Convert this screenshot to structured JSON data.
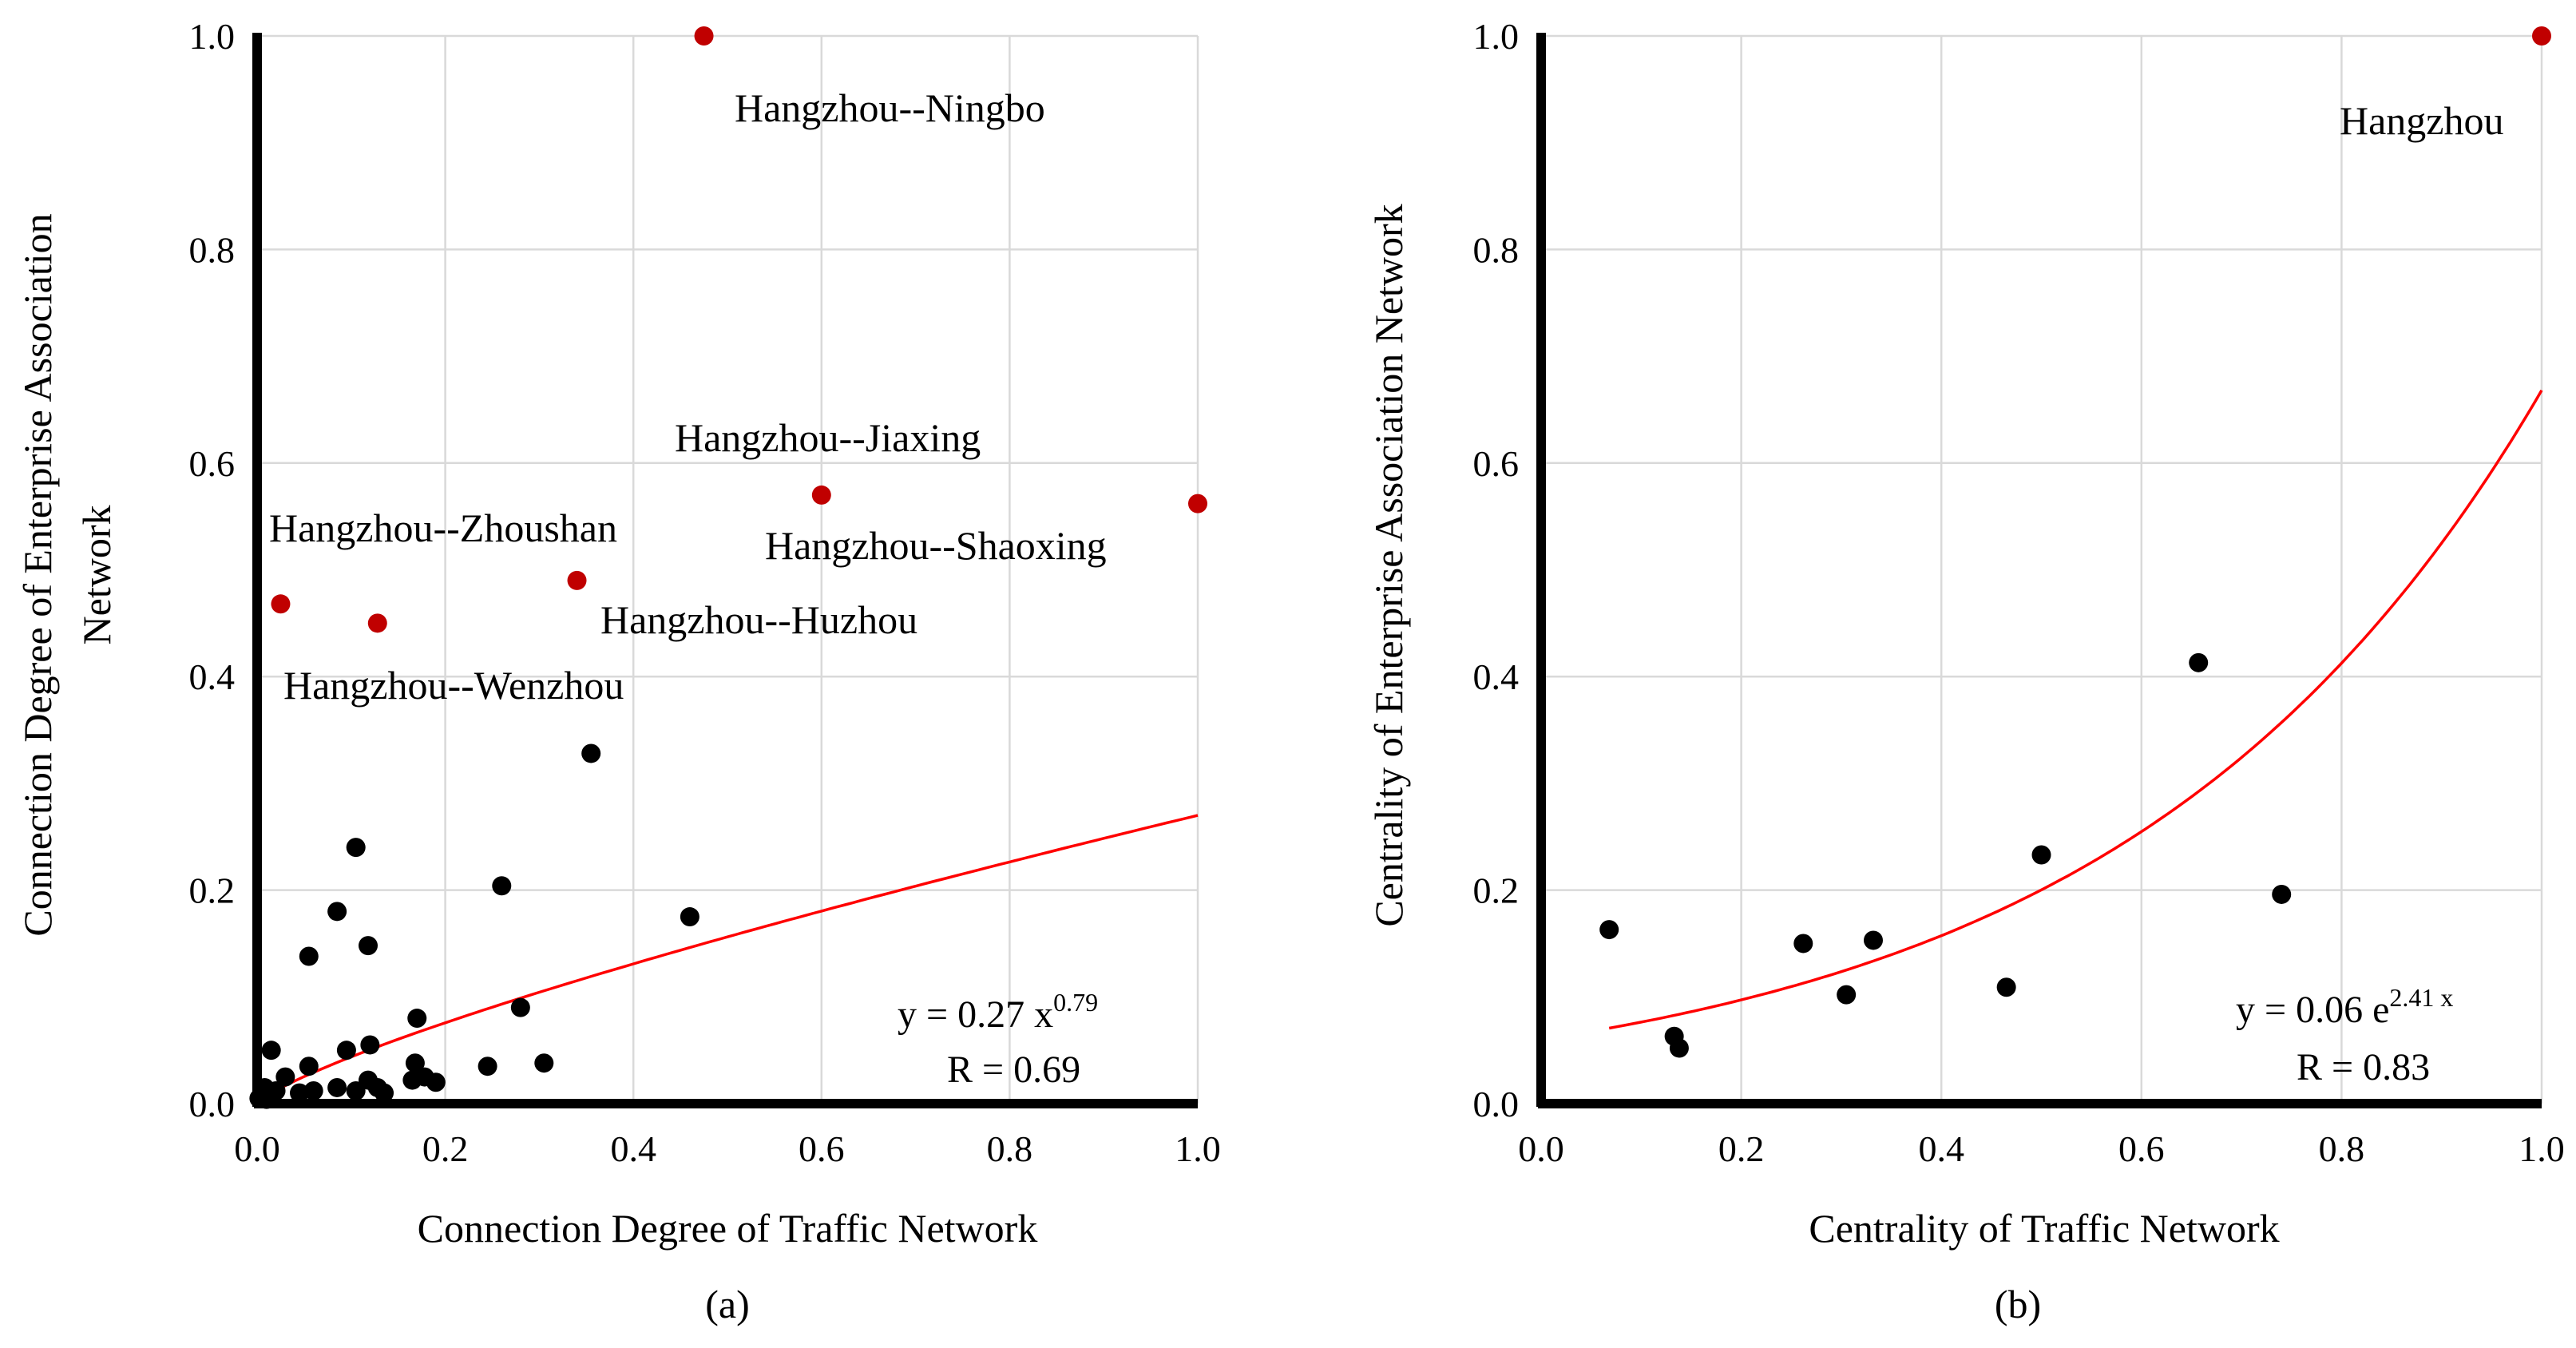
{
  "chart_data": [
    {
      "type": "scatter",
      "panel_label": "(a)",
      "xlabel": "Connection Degree of Traffic Network",
      "ylabel_lines": [
        "Connection Degree of Enterprise Association",
        "Network"
      ],
      "xlim": [
        0,
        1
      ],
      "ylim": [
        0,
        1
      ],
      "xticks": [
        "0.0",
        "0.2",
        "0.4",
        "0.6",
        "0.8",
        "1.0"
      ],
      "yticks": [
        "0.0",
        "0.2",
        "0.4",
        "0.6",
        "0.8",
        "1.0"
      ],
      "grid": true,
      "colors": {
        "highlight": "#c00000",
        "point": "#000000",
        "fit": "#ff0000"
      },
      "highlighted_points": [
        {
          "x": 0.475,
          "y": 1.0,
          "label": "Hangzhou--Ningbo"
        },
        {
          "x": 0.6,
          "y": 0.57,
          "label": "Hangzhou--Jiaxing"
        },
        {
          "x": 1.0,
          "y": 0.562,
          "label": "Hangzhou--Shaoxing"
        },
        {
          "x": 0.34,
          "y": 0.49,
          "label": "Hangzhou--Huzhou"
        },
        {
          "x": 0.025,
          "y": 0.468,
          "label": "Hangzhou--Zhoushan"
        },
        {
          "x": 0.128,
          "y": 0.45,
          "label": "Hangzhou--Wenzhou"
        }
      ],
      "points": [
        [
          0.355,
          0.328
        ],
        [
          0.105,
          0.24
        ],
        [
          0.26,
          0.204
        ],
        [
          0.085,
          0.18
        ],
        [
          0.46,
          0.175
        ],
        [
          0.118,
          0.148
        ],
        [
          0.055,
          0.138
        ],
        [
          0.28,
          0.09
        ],
        [
          0.17,
          0.08
        ],
        [
          0.12,
          0.055
        ],
        [
          0.095,
          0.05
        ],
        [
          0.015,
          0.05
        ],
        [
          0.055,
          0.035
        ],
        [
          0.305,
          0.038
        ],
        [
          0.245,
          0.035
        ],
        [
          0.168,
          0.038
        ],
        [
          0.03,
          0.025
        ],
        [
          0.118,
          0.022
        ],
        [
          0.178,
          0.025
        ],
        [
          0.19,
          0.02
        ],
        [
          0.165,
          0.022
        ],
        [
          0.008,
          0.015
        ],
        [
          0.02,
          0.012
        ],
        [
          0.045,
          0.01
        ],
        [
          0.085,
          0.015
        ],
        [
          0.105,
          0.012
        ],
        [
          0.128,
          0.015
        ],
        [
          0.135,
          0.01
        ],
        [
          0.06,
          0.012
        ],
        [
          0.002,
          0.005
        ],
        [
          0.01,
          0.004
        ]
      ],
      "fit": {
        "model": "power",
        "a": 0.27,
        "b": 0.79,
        "equation_text": "y = 0.27 x",
        "exponent_text": "0.79",
        "r_text": "R = 0.69"
      }
    },
    {
      "type": "scatter",
      "panel_label": "(b)",
      "xlabel": "Centrality of Traffic Network",
      "ylabel": "Centrality of Enterprise Association Network",
      "xlim": [
        0,
        1
      ],
      "ylim": [
        0,
        1
      ],
      "xticks": [
        "0.0",
        "0.2",
        "0.4",
        "0.6",
        "0.8",
        "1.0"
      ],
      "yticks": [
        "0.0",
        "0.2",
        "0.4",
        "0.6",
        "0.8",
        "1.0"
      ],
      "grid": true,
      "colors": {
        "highlight": "#c00000",
        "point": "#000000",
        "fit": "#ff0000"
      },
      "highlighted_points": [
        {
          "x": 1.0,
          "y": 1.0,
          "label": "Hangzhou"
        }
      ],
      "points": [
        [
          0.068,
          0.163
        ],
        [
          0.133,
          0.063
        ],
        [
          0.138,
          0.052
        ],
        [
          0.262,
          0.15
        ],
        [
          0.305,
          0.102
        ],
        [
          0.332,
          0.153
        ],
        [
          0.465,
          0.109
        ],
        [
          0.5,
          0.233
        ],
        [
          0.657,
          0.413
        ],
        [
          0.74,
          0.196
        ]
      ],
      "fit": {
        "model": "exponential",
        "a": 0.06,
        "b": 2.41,
        "x_range": [
          0.068,
          1.0
        ],
        "equation_text": "y = 0.06 e",
        "exponent_text": "2.41 x",
        "r_text": "R = 0.83"
      }
    }
  ]
}
